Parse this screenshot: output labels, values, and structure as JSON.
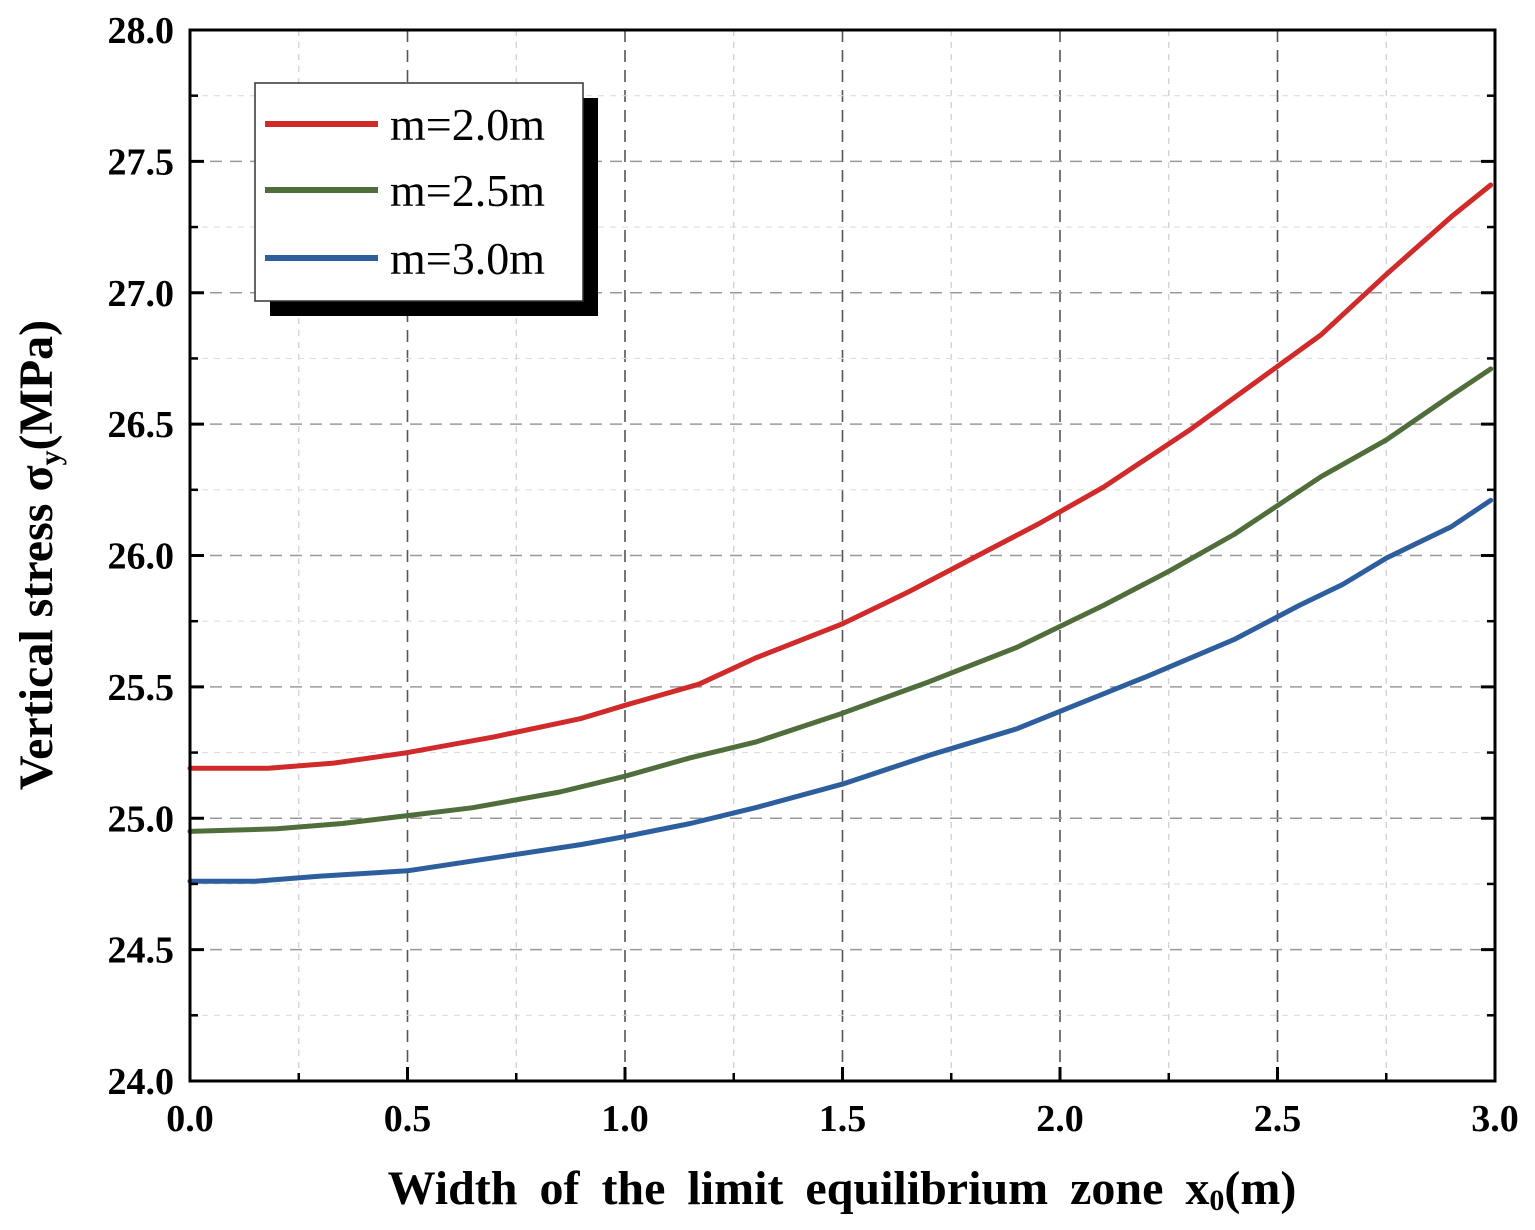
{
  "chart_data": {
    "type": "line",
    "title": "",
    "xlabel": "Width of the limit equilibrium zone x",
    "xlabel_sub": "0",
    "xlabel_unit": "(m)",
    "ylabel": "Vertical stress σ",
    "ylabel_sub": "y",
    "ylabel_unit": "(MPa)",
    "xlim": [
      0.0,
      3.0
    ],
    "ylim": [
      24.0,
      28.0
    ],
    "xticks": [
      "0.0",
      "0.5",
      "1.0",
      "1.5",
      "2.0",
      "2.5",
      "3.0"
    ],
    "yticks": [
      "24.0",
      "24.5",
      "25.0",
      "25.5",
      "26.0",
      "26.5",
      "27.0",
      "27.5",
      "28.0"
    ],
    "grid": true,
    "legend_position": "top-left",
    "series": [
      {
        "name": "m=2.0m",
        "color": "#d12a2a",
        "x": [
          0.0,
          0.18,
          0.33,
          0.5,
          0.7,
          0.9,
          1.0,
          1.17,
          1.3,
          1.5,
          1.65,
          1.8,
          1.95,
          2.1,
          2.3,
          2.45,
          2.6,
          2.75,
          2.9,
          2.99
        ],
        "y": [
          25.19,
          25.19,
          25.21,
          25.25,
          25.31,
          25.38,
          25.43,
          25.51,
          25.61,
          25.74,
          25.86,
          25.99,
          26.12,
          26.26,
          26.48,
          26.66,
          26.84,
          27.07,
          27.29,
          27.41
        ]
      },
      {
        "name": "m=2.5m",
        "color": "#4f6e3c",
        "x": [
          0.0,
          0.2,
          0.35,
          0.5,
          0.65,
          0.85,
          1.0,
          1.15,
          1.3,
          1.5,
          1.7,
          1.9,
          2.1,
          2.25,
          2.4,
          2.6,
          2.75,
          2.9,
          2.99
        ],
        "y": [
          24.95,
          24.96,
          24.98,
          25.01,
          25.04,
          25.1,
          25.16,
          25.23,
          25.29,
          25.4,
          25.52,
          25.65,
          25.81,
          25.94,
          26.08,
          26.3,
          26.44,
          26.61,
          26.71
        ]
      },
      {
        "name": "m=3.0m",
        "color": "#2d5e9e",
        "x": [
          0.0,
          0.15,
          0.3,
          0.5,
          0.7,
          0.9,
          1.0,
          1.15,
          1.3,
          1.5,
          1.7,
          1.9,
          2.05,
          2.2,
          2.4,
          2.55,
          2.65,
          2.75,
          2.9,
          2.99
        ],
        "y": [
          24.76,
          24.76,
          24.78,
          24.8,
          24.85,
          24.9,
          24.93,
          24.98,
          25.04,
          25.13,
          25.24,
          25.34,
          25.44,
          25.54,
          25.68,
          25.81,
          25.89,
          25.99,
          26.11,
          26.21
        ]
      }
    ]
  }
}
